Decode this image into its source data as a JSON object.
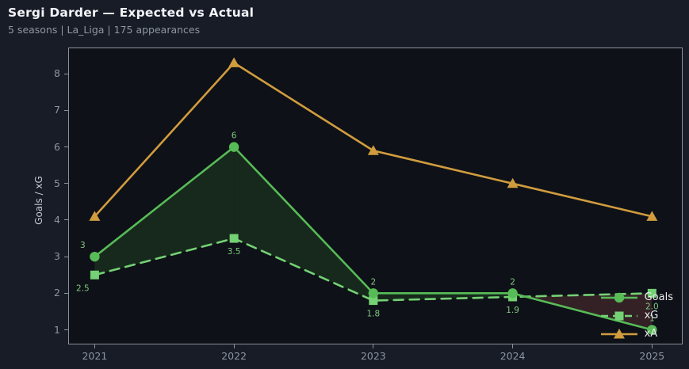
{
  "header": {
    "title": "Sergi Darder — Expected vs Actual",
    "subtitle": "5 seasons | La_Liga | 175 appearances"
  },
  "colors": {
    "page_bg": "#171c27",
    "plot_bg": "#0e1117",
    "spine": "#8b919b",
    "goals_green": "#57bb57",
    "xg_green": "#74d174",
    "xa_orange": "#d09c3e",
    "data_label_green": "#7fc97f",
    "fill_positive": "#17291c",
    "fill_negative": "#342126"
  },
  "chart_data": {
    "type": "line",
    "title": "Sergi Darder — Expected vs Actual",
    "xlabel": "",
    "ylabel": "Goals / xG",
    "x": [
      2021,
      2022,
      2023,
      2024,
      2025
    ],
    "series": [
      {
        "name": "Goals",
        "marker": "circle",
        "style": "solid",
        "color": "#57bb57",
        "values": [
          3,
          6,
          2,
          2,
          1
        ],
        "labels": [
          "3",
          "6",
          "2",
          "2",
          "1"
        ],
        "label_side": "above"
      },
      {
        "name": "xG",
        "marker": "square",
        "style": "dashed",
        "color": "#74d174",
        "values": [
          2.5,
          3.5,
          1.8,
          1.9,
          2.0
        ],
        "labels": [
          "2.5",
          "3.5",
          "1.8",
          "1.9",
          "2.0"
        ],
        "label_side": "below"
      },
      {
        "name": "xA",
        "marker": "triangle",
        "style": "solid",
        "color": "#d09c3e",
        "values": [
          4.1,
          8.3,
          5.9,
          5.0,
          4.1
        ]
      }
    ],
    "label_color": "#7fc97f",
    "fill_between": {
      "a": "Goals",
      "b": "xG",
      "positive_color": "#17291c",
      "negative_color": "#342126"
    },
    "xticks": [
      "2021",
      "2022",
      "2023",
      "2024",
      "2025"
    ],
    "yticks": [
      1,
      2,
      3,
      4,
      5,
      6,
      7,
      8
    ],
    "xlim": [
      2020.81,
      2025.22
    ],
    "ylim": [
      0.6,
      8.72
    ],
    "grid": false,
    "legend_position": "lower right",
    "legend": [
      "Goals",
      "xG",
      "xA"
    ]
  }
}
